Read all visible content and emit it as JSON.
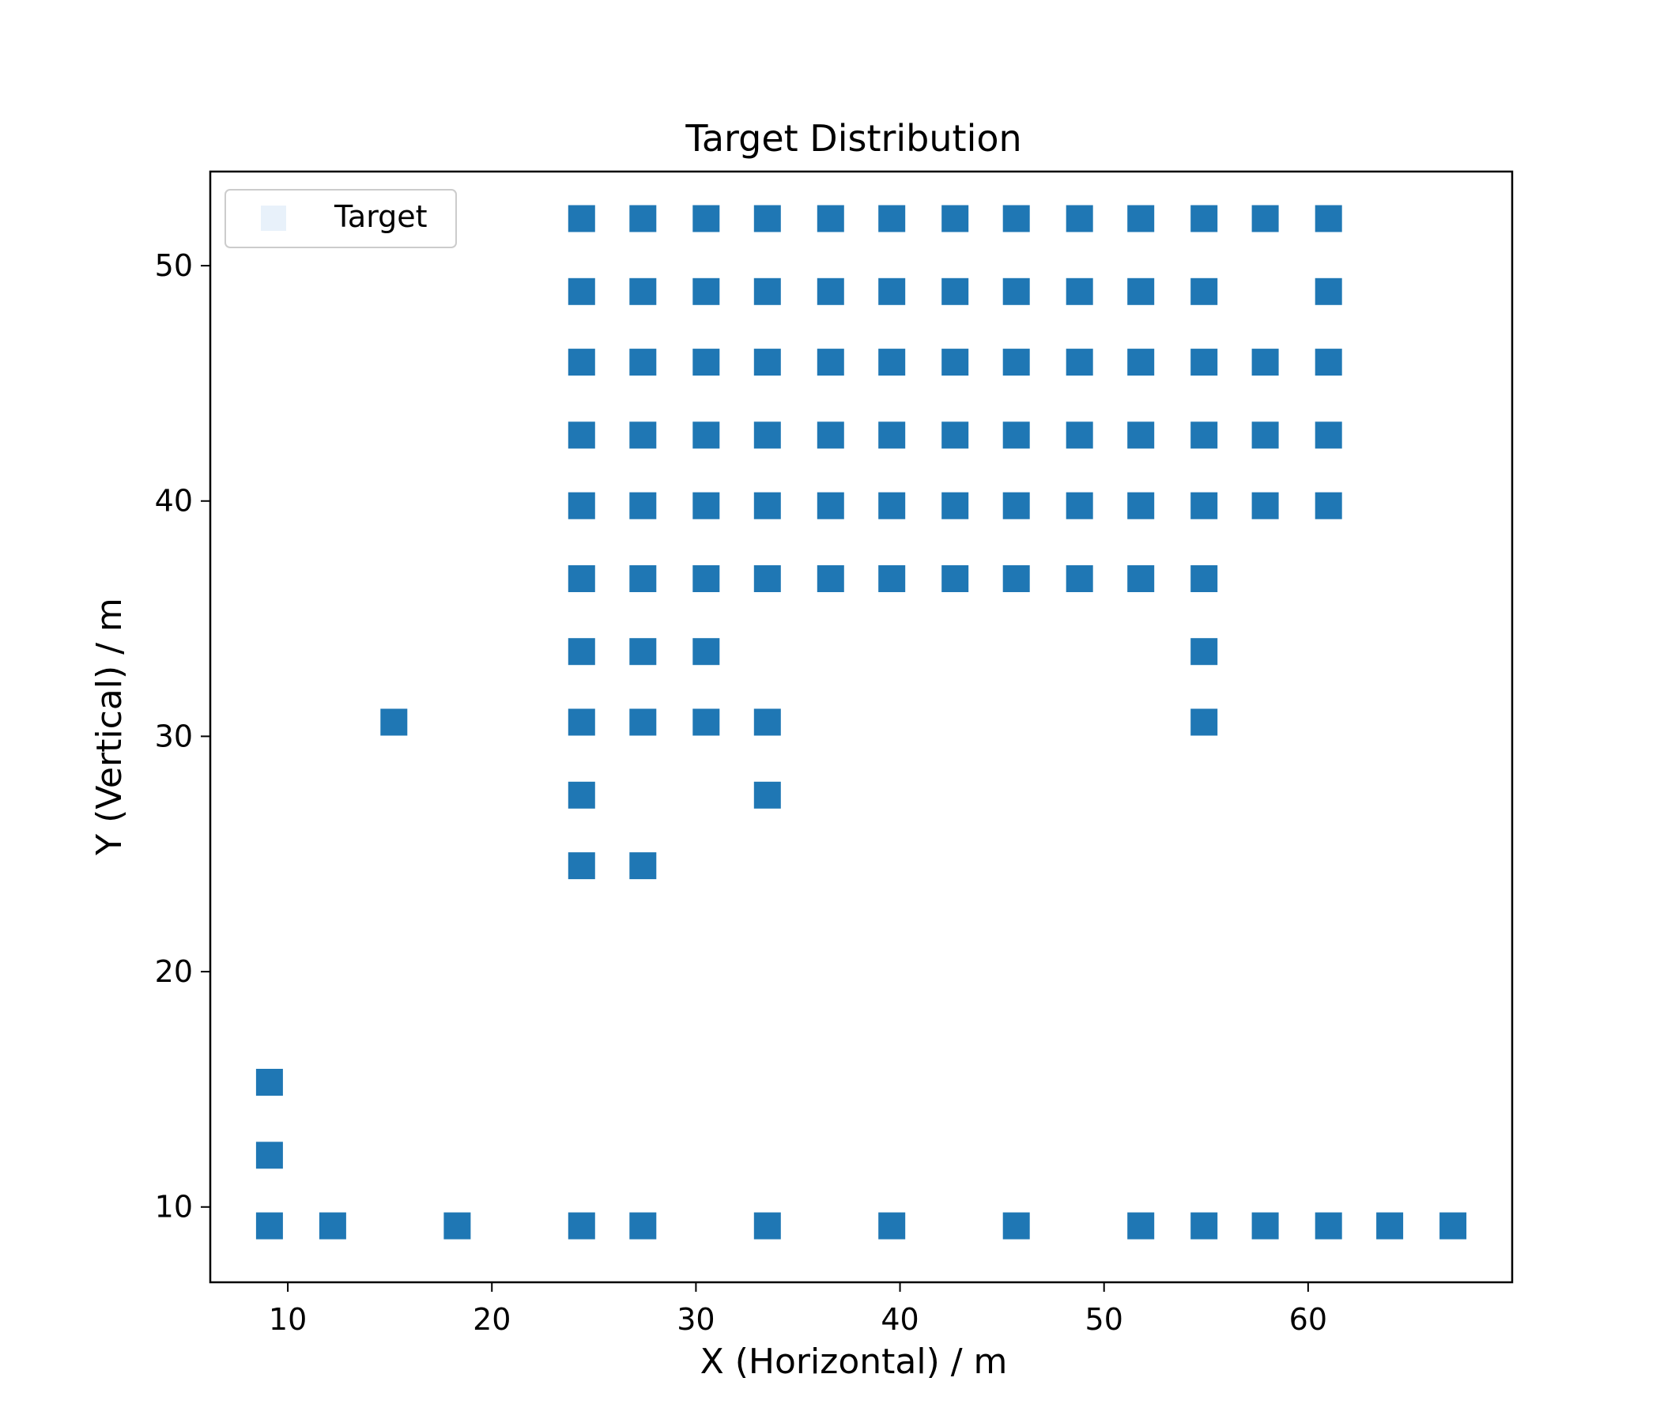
{
  "chart_data": {
    "type": "scatter",
    "title": "Target Distribution",
    "xlabel": "X (Horizontal) / m",
    "ylabel": "Y (Vertical) / m",
    "xlim": [
      6.2,
      70
    ],
    "ylim": [
      6.8,
      54.0
    ],
    "xticks": [
      10,
      20,
      30,
      40,
      50,
      60
    ],
    "yticks": [
      10,
      20,
      30,
      40,
      50
    ],
    "grid": false,
    "legend_position": "top-left",
    "series": [
      {
        "name": "Target",
        "color": "#1f77b4",
        "legend_marker_color": "#e8f1fa",
        "marker": "square",
        "points": [
          [
            24.4,
            52.0
          ],
          [
            27.4,
            52.0
          ],
          [
            30.5,
            52.0
          ],
          [
            33.5,
            52.0
          ],
          [
            36.6,
            52.0
          ],
          [
            39.6,
            52.0
          ],
          [
            42.7,
            52.0
          ],
          [
            45.7,
            52.0
          ],
          [
            48.8,
            52.0
          ],
          [
            51.8,
            52.0
          ],
          [
            54.9,
            52.0
          ],
          [
            57.9,
            52.0
          ],
          [
            61.0,
            52.0
          ],
          [
            24.4,
            48.9
          ],
          [
            27.4,
            48.9
          ],
          [
            30.5,
            48.9
          ],
          [
            33.5,
            48.9
          ],
          [
            36.6,
            48.9
          ],
          [
            39.6,
            48.9
          ],
          [
            42.7,
            48.9
          ],
          [
            45.7,
            48.9
          ],
          [
            48.8,
            48.9
          ],
          [
            51.8,
            48.9
          ],
          [
            54.9,
            48.9
          ],
          [
            61.0,
            48.9
          ],
          [
            24.4,
            45.9
          ],
          [
            27.4,
            45.9
          ],
          [
            30.5,
            45.9
          ],
          [
            33.5,
            45.9
          ],
          [
            36.6,
            45.9
          ],
          [
            39.6,
            45.9
          ],
          [
            42.7,
            45.9
          ],
          [
            45.7,
            45.9
          ],
          [
            48.8,
            45.9
          ],
          [
            51.8,
            45.9
          ],
          [
            54.9,
            45.9
          ],
          [
            57.9,
            45.9
          ],
          [
            61.0,
            45.9
          ],
          [
            24.4,
            42.8
          ],
          [
            27.4,
            42.8
          ],
          [
            30.5,
            42.8
          ],
          [
            33.5,
            42.8
          ],
          [
            36.6,
            42.8
          ],
          [
            39.6,
            42.8
          ],
          [
            42.7,
            42.8
          ],
          [
            45.7,
            42.8
          ],
          [
            48.8,
            42.8
          ],
          [
            51.8,
            42.8
          ],
          [
            54.9,
            42.8
          ],
          [
            57.9,
            42.8
          ],
          [
            61.0,
            42.8
          ],
          [
            24.4,
            39.8
          ],
          [
            27.4,
            39.8
          ],
          [
            30.5,
            39.8
          ],
          [
            33.5,
            39.8
          ],
          [
            36.6,
            39.8
          ],
          [
            39.6,
            39.8
          ],
          [
            42.7,
            39.8
          ],
          [
            45.7,
            39.8
          ],
          [
            48.8,
            39.8
          ],
          [
            51.8,
            39.8
          ],
          [
            54.9,
            39.8
          ],
          [
            57.9,
            39.8
          ],
          [
            61.0,
            39.8
          ],
          [
            24.4,
            36.7
          ],
          [
            27.4,
            36.7
          ],
          [
            30.5,
            36.7
          ],
          [
            33.5,
            36.7
          ],
          [
            36.6,
            36.7
          ],
          [
            39.6,
            36.7
          ],
          [
            42.7,
            36.7
          ],
          [
            45.7,
            36.7
          ],
          [
            48.8,
            36.7
          ],
          [
            51.8,
            36.7
          ],
          [
            54.9,
            36.7
          ],
          [
            24.4,
            33.6
          ],
          [
            27.4,
            33.6
          ],
          [
            30.5,
            33.6
          ],
          [
            54.9,
            33.6
          ],
          [
            15.2,
            30.6
          ],
          [
            24.4,
            30.6
          ],
          [
            27.4,
            30.6
          ],
          [
            30.5,
            30.6
          ],
          [
            33.5,
            30.6
          ],
          [
            54.9,
            30.6
          ],
          [
            24.4,
            27.5
          ],
          [
            33.5,
            27.5
          ],
          [
            24.4,
            24.5
          ],
          [
            27.4,
            24.5
          ],
          [
            9.1,
            15.3
          ],
          [
            9.1,
            12.2
          ],
          [
            9.1,
            9.2
          ],
          [
            12.2,
            9.2
          ],
          [
            18.3,
            9.2
          ],
          [
            24.4,
            9.2
          ],
          [
            27.4,
            9.2
          ],
          [
            33.5,
            9.2
          ],
          [
            39.6,
            9.2
          ],
          [
            45.7,
            9.2
          ],
          [
            51.8,
            9.2
          ],
          [
            54.9,
            9.2
          ],
          [
            57.9,
            9.2
          ],
          [
            61.0,
            9.2
          ],
          [
            64.0,
            9.2
          ],
          [
            67.1,
            9.2
          ]
        ]
      }
    ]
  }
}
